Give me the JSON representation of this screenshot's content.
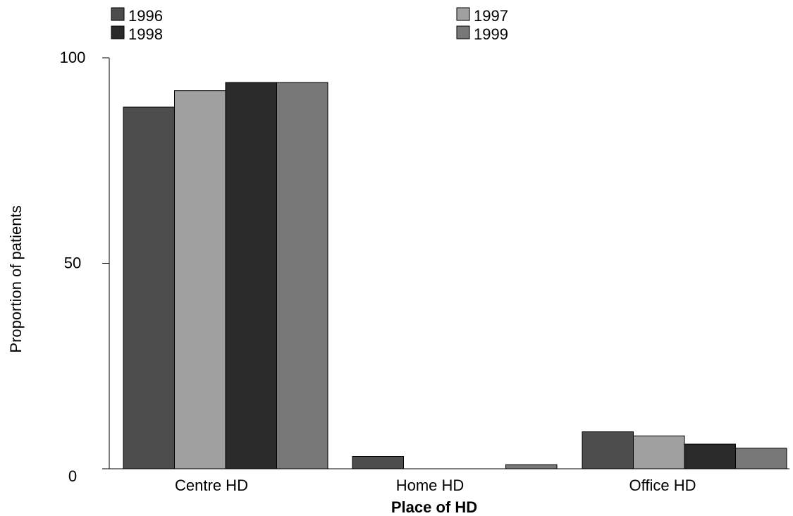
{
  "chart_data": {
    "type": "bar",
    "xlabel": "Place of HD",
    "ylabel": "Proportion of patients",
    "categories": [
      "Centre HD",
      "Home HD",
      "Office HD"
    ],
    "ylim": [
      0,
      100
    ],
    "yticks": [
      0,
      50,
      100
    ],
    "grid": false,
    "legend_position": "top",
    "series": [
      {
        "name": "1996",
        "color": "#4d4d4d",
        "values": [
          88,
          3,
          9
        ]
      },
      {
        "name": "1997",
        "color": "#a0a0a0",
        "values": [
          92,
          0,
          8
        ]
      },
      {
        "name": "1998",
        "color": "#2a2a2a",
        "values": [
          94,
          0,
          6
        ]
      },
      {
        "name": "1999",
        "color": "#787878",
        "values": [
          94,
          1,
          5
        ]
      }
    ]
  }
}
